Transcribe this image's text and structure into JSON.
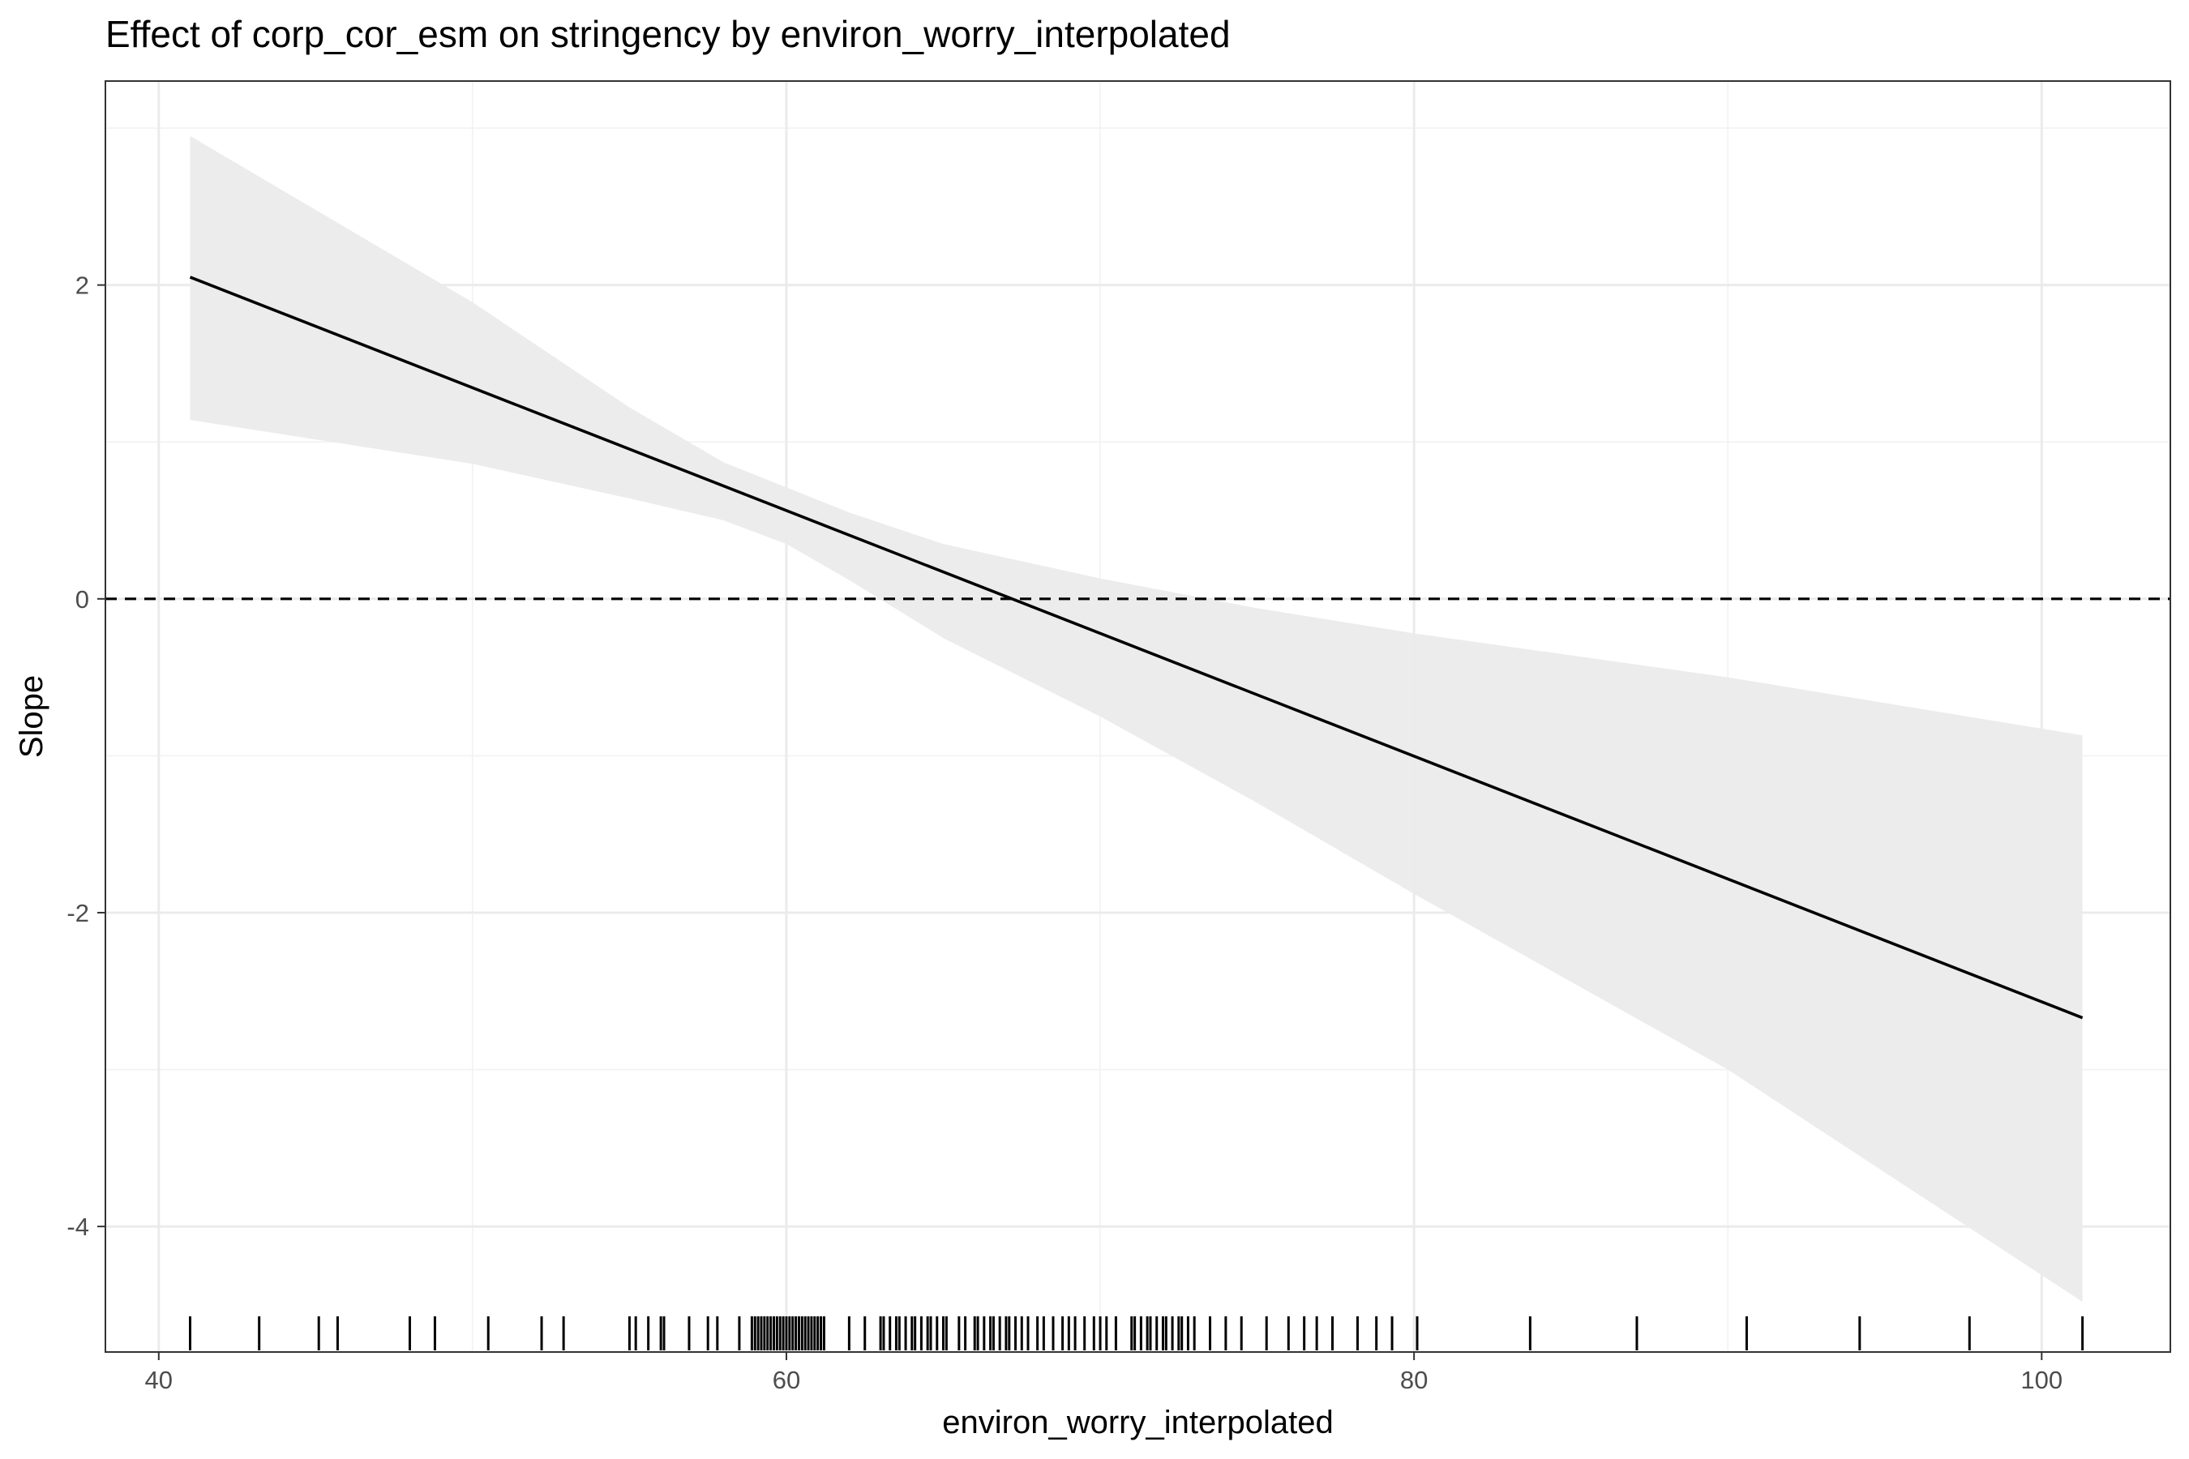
{
  "chart_data": {
    "type": "line",
    "title": "Effect of corp_cor_esm on stringency by environ_worry_interpolated",
    "xlabel": "environ_worry_interpolated",
    "ylabel": "Slope",
    "xlim": [
      38.3,
      104.1
    ],
    "ylim": [
      -4.8,
      3.3
    ],
    "x_ticks": [
      40,
      60,
      80,
      100
    ],
    "y_ticks": [
      -4,
      -2,
      0,
      2
    ],
    "x_tick_labels": [
      "40",
      "60",
      "80",
      "100"
    ],
    "y_tick_labels": [
      "-4",
      "-2",
      "0",
      "2"
    ],
    "x_minor_ticks": [
      50,
      70,
      90
    ],
    "y_minor_ticks": [
      -3,
      -1,
      1,
      3
    ],
    "grid": true,
    "legend": "none",
    "reference_line": {
      "y": 0,
      "style": "dashed"
    },
    "series": [
      {
        "type": "line",
        "x": [
          41.0,
          101.3
        ],
        "y": [
          2.05,
          -2.67
        ]
      }
    ],
    "confidence_band": {
      "x": [
        41.0,
        50.0,
        55.0,
        58.0,
        60.0,
        62.0,
        65.0,
        70.0,
        75.0,
        80.0,
        90.0,
        101.3
      ],
      "lower": [
        1.14,
        0.86,
        0.64,
        0.5,
        0.35,
        0.12,
        -0.25,
        -0.75,
        -1.3,
        -1.88,
        -3.0,
        -4.48
      ],
      "upper": [
        2.95,
        1.89,
        1.22,
        0.87,
        0.71,
        0.55,
        0.35,
        0.13,
        -0.06,
        -0.22,
        -0.5,
        -0.87
      ]
    },
    "rug_x": [
      41.0,
      43.2,
      45.1,
      45.7,
      48.0,
      48.8,
      50.5,
      52.2,
      52.9,
      55.0,
      55.2,
      55.6,
      56.0,
      56.1,
      56.9,
      57.5,
      57.8,
      58.5,
      58.9,
      59.0,
      59.1,
      59.2,
      59.3,
      59.4,
      59.5,
      59.6,
      59.7,
      59.8,
      59.9,
      60.0,
      60.1,
      60.2,
      60.3,
      60.4,
      60.5,
      60.6,
      60.7,
      60.8,
      60.9,
      61.0,
      61.1,
      61.2,
      62.0,
      62.5,
      63.0,
      63.1,
      63.3,
      63.5,
      63.6,
      63.8,
      64.0,
      64.1,
      64.3,
      64.5,
      64.6,
      64.8,
      65.0,
      65.1,
      65.5,
      65.7,
      66.0,
      66.1,
      66.3,
      66.5,
      66.6,
      66.8,
      67.0,
      67.1,
      67.3,
      67.5,
      67.7,
      68.0,
      68.2,
      68.5,
      68.8,
      69.0,
      69.2,
      69.5,
      69.8,
      70.0,
      70.2,
      70.5,
      71.0,
      71.1,
      71.3,
      71.5,
      71.6,
      71.8,
      72.0,
      72.1,
      72.3,
      72.5,
      72.6,
      72.8,
      73.0,
      73.5,
      74.0,
      74.5,
      75.3,
      76.0,
      76.5,
      76.9,
      77.4,
      78.2,
      78.8,
      79.3,
      80.1,
      83.7,
      87.1,
      90.6,
      94.2,
      97.7,
      101.3
    ]
  }
}
